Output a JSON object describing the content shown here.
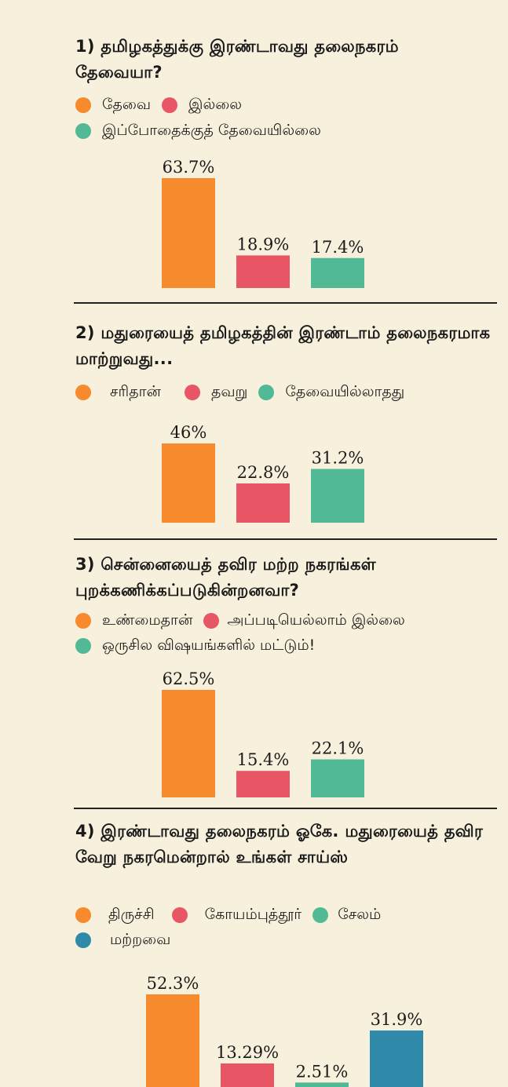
{
  "chart_data": [
    {
      "type": "bar",
      "title": "1) தமிழகத்துக்கு இரண்டாவது தலைநகரம் தேவையா?",
      "categories": [
        "தேவை",
        "இல்லை",
        "இப்போதைக்குத் தேவையில்லை"
      ],
      "values": [
        63.7,
        18.9,
        17.4
      ],
      "data_labels": [
        "63.7%",
        "18.9%",
        "17.4%"
      ],
      "colors": [
        "#f68a2c",
        "#e85565",
        "#52b996"
      ],
      "legend_rows": [
        [
          0,
          1
        ],
        [
          2
        ]
      ],
      "ylim": [
        0,
        63.7
      ]
    },
    {
      "type": "bar",
      "title": "2) மதுரையைத் தமிழகத்தின் இரண்டாம் தலைநகரமாக மாற்றுவது...",
      "categories": [
        "சரிதான்",
        "தவறு",
        "தேவையில்லாதது"
      ],
      "values": [
        46,
        22.8,
        31.2
      ],
      "data_labels": [
        "46%",
        "22.8%",
        "31.2%"
      ],
      "colors": [
        "#f68a2c",
        "#e85565",
        "#52b996"
      ],
      "legend_rows": [
        [
          0,
          1,
          2
        ]
      ],
      "ylim": [
        0,
        63.7
      ]
    },
    {
      "type": "bar",
      "title": "3) சென்னையைத் தவிர மற்ற நகரங்கள் புறக்கணிக்கப்படுகின்றனவா?",
      "categories": [
        "உண்மைதான்",
        "அப்படியெல்லாம் இல்லை",
        "ஒருசில விஷயங்களில் மட்டும்!"
      ],
      "values": [
        62.5,
        15.4,
        22.1
      ],
      "data_labels": [
        "62.5%",
        "15.4%",
        "22.1%"
      ],
      "colors": [
        "#f68a2c",
        "#e85565",
        "#52b996"
      ],
      "legend_rows": [
        [
          0,
          1
        ],
        [
          2
        ]
      ],
      "ylim": [
        0,
        63.7
      ]
    },
    {
      "type": "bar",
      "title": "4) இரண்டாவது தலைநகரம் ஓகே. மதுரையைத் தவிர வேறு நகரமென்றால் உங்கள் சாய்ஸ்",
      "categories": [
        "திருச்சி",
        "கோயம்புத்தூர்",
        "சேலம்",
        "மற்றவை"
      ],
      "values": [
        52.3,
        13.29,
        2.51,
        31.9
      ],
      "data_labels": [
        "52.3%",
        "13.29%",
        "2.51%",
        "31.9%"
      ],
      "colors": [
        "#f68a2c",
        "#e85565",
        "#52b996",
        "#2f89a8"
      ],
      "legend_rows": [
        [
          0,
          1,
          2
        ],
        [
          3
        ]
      ],
      "ylim": [
        0,
        63.7
      ]
    }
  ]
}
